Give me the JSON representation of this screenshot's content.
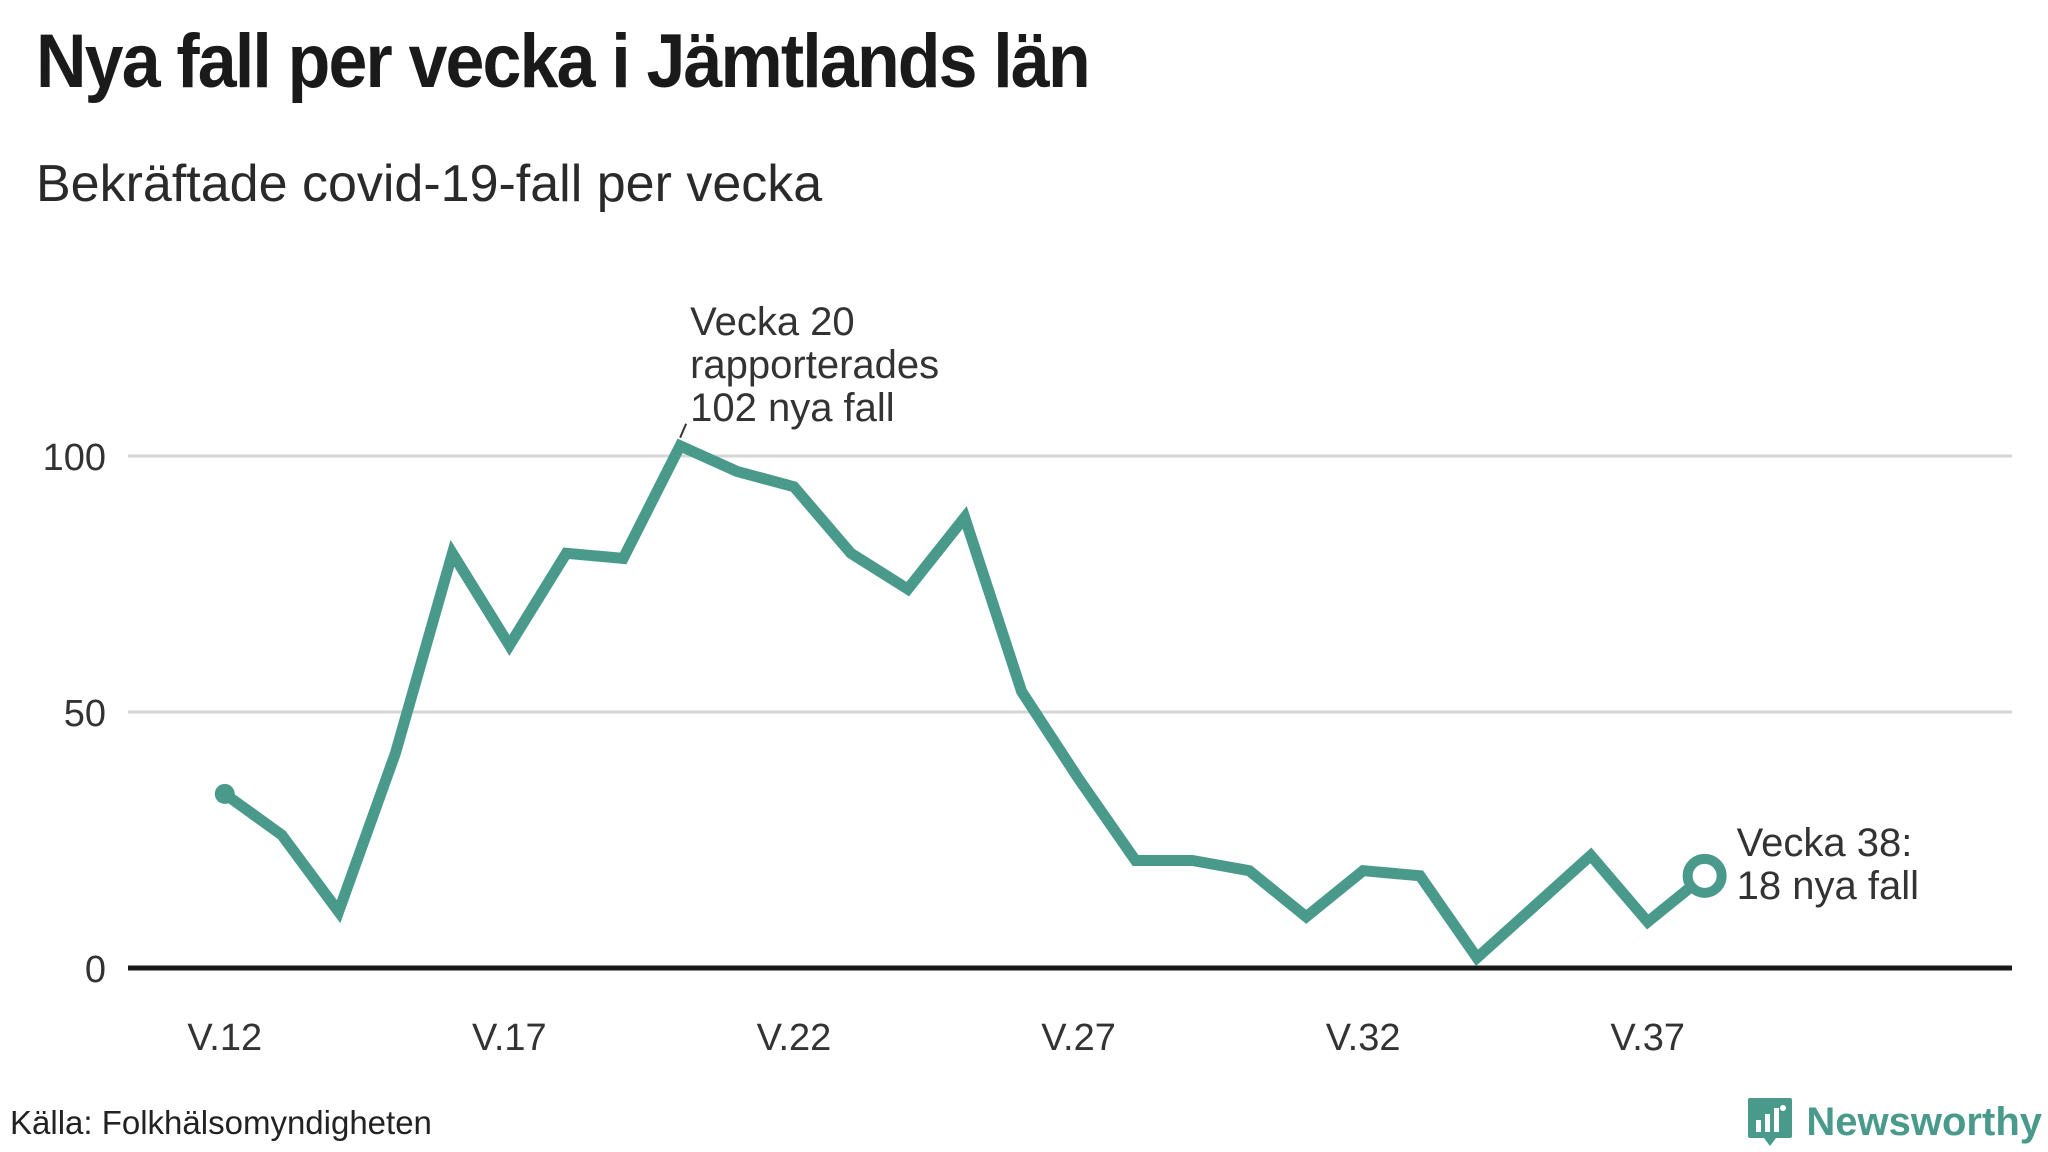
{
  "header": {
    "title": "Nya fall per vecka i Jämtlands län",
    "subtitle": "Bekräftade covid-19-fall per vecka"
  },
  "footer": {
    "source": "Källa: Folkhälsomyndigheten",
    "brand": "Newsworthy"
  },
  "colors": {
    "line": "#4a9a8c",
    "grid": "#d6d6d6",
    "baseline": "#1a1a1a",
    "text": "#333333"
  },
  "chart_data": {
    "type": "line",
    "title": "Nya fall per vecka i Jämtlands län",
    "subtitle": "Bekräftade covid-19-fall per vecka",
    "xlabel": "",
    "ylabel": "",
    "x": [
      12,
      13,
      14,
      15,
      16,
      17,
      18,
      19,
      20,
      21,
      22,
      23,
      24,
      25,
      26,
      27,
      28,
      29,
      30,
      31,
      32,
      33,
      34,
      35,
      36,
      37,
      38
    ],
    "series": [
      {
        "values": [
          34,
          26,
          11,
          42,
          81,
          63,
          81,
          80,
          102,
          97,
          94,
          81,
          74,
          88,
          54,
          37,
          21,
          21,
          19,
          10,
          19,
          18,
          2,
          12,
          22,
          9,
          18
        ]
      }
    ],
    "xticks": [
      12,
      17,
      22,
      27,
      32,
      37
    ],
    "xtick_labels": [
      "V.12",
      "V.17",
      "V.22",
      "V.27",
      "V.32",
      "V.37"
    ],
    "xlim": [
      10.3,
      43.4
    ],
    "yticks": [
      0,
      50,
      100
    ],
    "ytick_labels": [
      "0",
      "50",
      "100"
    ],
    "ylim": [
      0,
      100
    ],
    "grid": true,
    "annotations": [
      {
        "week": 20,
        "value": 102,
        "lines": [
          "Vecka 20",
          "rapporterades",
          "102 nya fall"
        ]
      },
      {
        "week": 38,
        "value": 18,
        "lines": [
          "Vecka 38:",
          "18 nya fall"
        ]
      }
    ]
  }
}
